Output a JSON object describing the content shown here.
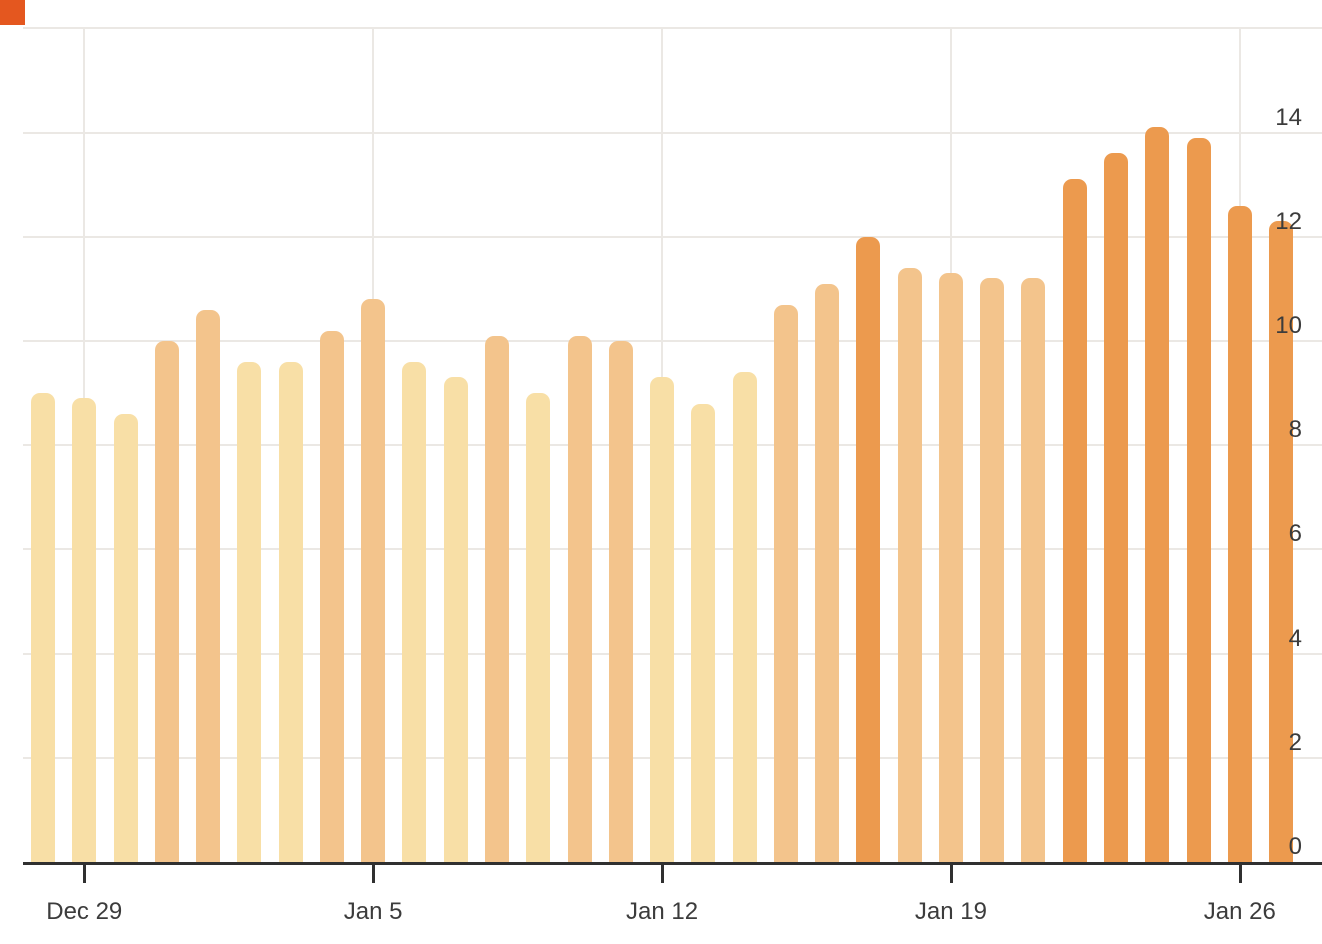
{
  "marker": {
    "color": "#e4571f"
  },
  "chart_data": {
    "type": "bar",
    "x": [
      "Dec 28",
      "Dec 29",
      "Dec 30",
      "Dec 31",
      "Jan 1",
      "Jan 2",
      "Jan 3",
      "Jan 4",
      "Jan 5",
      "Jan 6",
      "Jan 7",
      "Jan 8",
      "Jan 9",
      "Jan 10",
      "Jan 11",
      "Jan 12",
      "Jan 13",
      "Jan 14",
      "Jan 15",
      "Jan 16",
      "Jan 17",
      "Jan 18",
      "Jan 19",
      "Jan 20",
      "Jan 21",
      "Jan 22",
      "Jan 23",
      "Jan 24",
      "Jan 25",
      "Jan 26",
      "Jan 27"
    ],
    "values": [
      9.0,
      8.9,
      8.6,
      10.0,
      10.6,
      9.6,
      9.6,
      10.2,
      10.8,
      9.6,
      9.3,
      10.1,
      9.0,
      10.1,
      10.0,
      9.3,
      8.8,
      9.4,
      10.7,
      11.1,
      12.0,
      11.4,
      11.3,
      11.2,
      11.2,
      13.1,
      13.6,
      14.1,
      13.9,
      12.6,
      12.3
    ],
    "title": "",
    "xlabel": "",
    "ylabel": "",
    "x_tick_labels": [
      "Dec 29",
      "Jan 5",
      "Jan 12",
      "Jan 19",
      "Jan 26"
    ],
    "y_tick_labels": [
      "0",
      "2",
      "4",
      "6",
      "8",
      "10",
      "12",
      "14"
    ],
    "y_grid_values": [
      2,
      4,
      6,
      8,
      10,
      12,
      14,
      16
    ],
    "ylim": [
      0,
      16.1
    ],
    "grid": true,
    "legend": false,
    "y_axis_side": "right",
    "color_scale": {
      "thresholds": [
        10,
        12
      ],
      "colors": [
        "#f8dfa6",
        "#f3c48c",
        "#ec9a4e"
      ]
    },
    "colors": {
      "grid": "#ebe8e4",
      "axis": "#303030",
      "tick_label": "#3c3c3c",
      "background": "#ffffff"
    }
  }
}
